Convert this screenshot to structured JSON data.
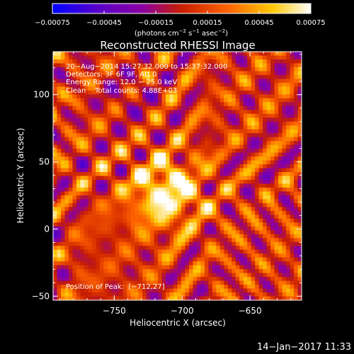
{
  "chart_data": {
    "type": "heatmap",
    "title": "Reconstructed RHESSI Image",
    "xlabel": "Heliocentric X (arcsec)",
    "ylabel": "Heliocentric Y (arcsec)",
    "xlim": [
      -795,
      -612
    ],
    "ylim": [
      -53,
      132
    ],
    "xticks": [
      -750,
      -700,
      -650
    ],
    "xtick_labels": [
      "−750",
      "−700",
      "−650"
    ],
    "yticks": [
      -50,
      0,
      50,
      100
    ],
    "ytick_labels": [
      "−50",
      "0",
      "50",
      "100"
    ],
    "colorbar": {
      "ticks": [
        -0.00075,
        -0.00045,
        -0.00015,
        0.00015,
        0.00045,
        0.00075
      ],
      "tick_labels": [
        "−0.00075",
        "−0.00045",
        "−0.00015",
        "0.00015",
        "0.00045",
        "0.00075"
      ],
      "range": [
        -0.00075,
        0.00075
      ],
      "unit_base": "(photons cm",
      "unit_exp1": "−2",
      "unit_mid": " s",
      "unit_exp2": "−1",
      "unit_mid2": " asec",
      "unit_exp3": "−2",
      "unit_end": ")"
    },
    "annotations": {
      "time_range": "20−Aug−2014 15:27:32.000 to 15:37:32.000",
      "detectors": "Detectors: 3F 6F 9F, Att 0",
      "energy_range": "Energy Range: 12.0 − 25.0 keV",
      "clean_counts": "Clean    Total counts: 4.88E+03",
      "peak": "Position of Peak:  [−712,27]"
    },
    "peak_position": [
      -712,
      27
    ],
    "colormap_colors": [
      "#0000ff",
      "#5a00c8",
      "#8c00a0",
      "#c81e00",
      "#ff6400",
      "#ffc800",
      "#ffffff"
    ]
  },
  "footer": {
    "date": "14−Jan−2017 11:33"
  }
}
